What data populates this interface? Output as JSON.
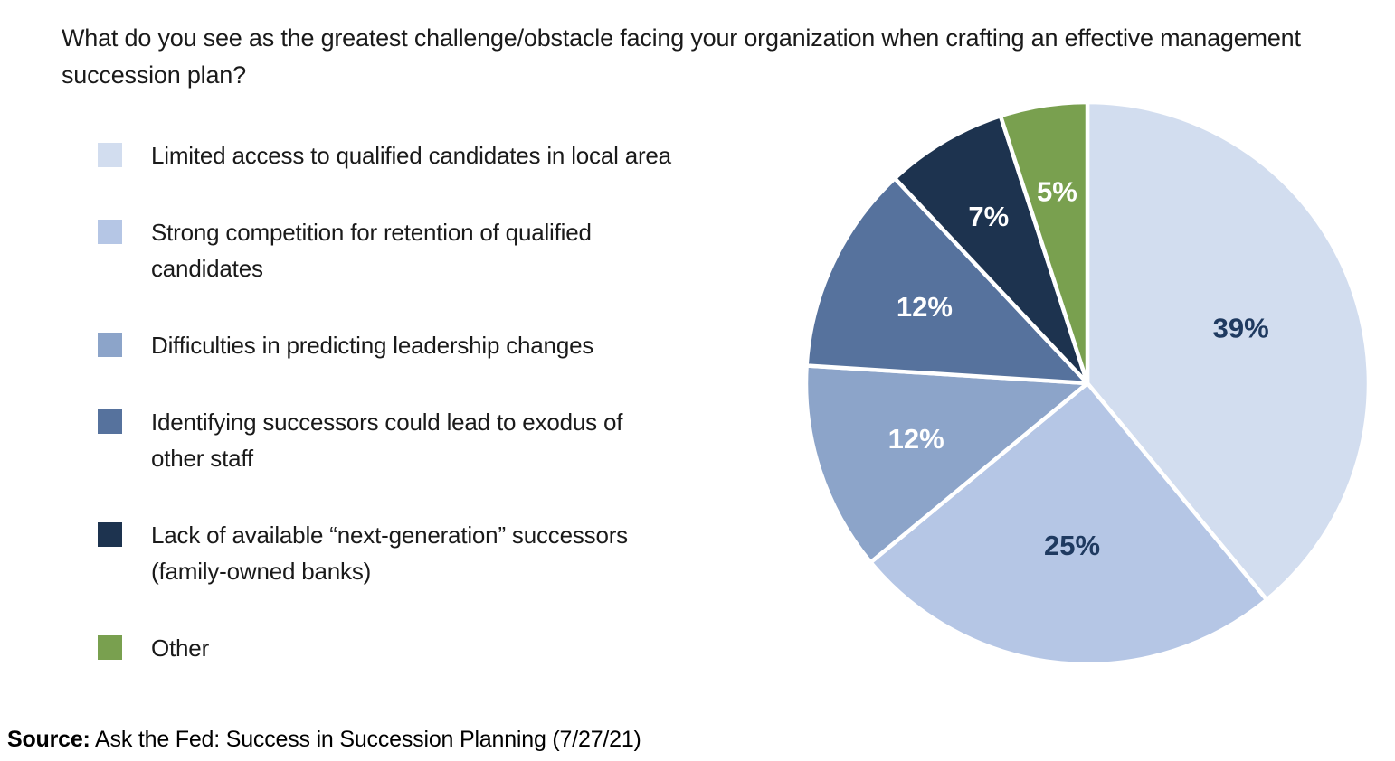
{
  "title": "What do you see as the greatest challenge/obstacle facing your organization when crafting an effective management succession plan?",
  "source": {
    "prefix": "Source:",
    "text": " Ask the Fed: Success in Succession Planning (7/27/21)"
  },
  "chart_data": {
    "type": "pie",
    "title": "What do you see as the greatest challenge/obstacle facing your organization when crafting an effective management succession plan?",
    "start_angle_deg": 0,
    "direction": "clockwise",
    "labels_position": "inside",
    "legend_position": "left",
    "separator_color": "#ffffff",
    "slices": [
      {
        "label": "Limited access to qualified candidates in local area",
        "legend_lines": [
          "Limited access to qualified candidates in local area"
        ],
        "value": 39,
        "display": "39%",
        "color": "#d2ddef",
        "label_color": "#1f3a60"
      },
      {
        "label": "Strong competition for retention of qualified candidates",
        "legend_lines": [
          "Strong competition for retention of qualified",
          "candidates"
        ],
        "value": 25,
        "display": "25%",
        "color": "#b5c6e5",
        "label_color": "#1f3a60"
      },
      {
        "label": "Difficulties in predicting leadership changes",
        "legend_lines": [
          "Difficulties in predicting leadership changes"
        ],
        "value": 12,
        "display": "12%",
        "color": "#8ca4c9",
        "label_color": "#ffffff"
      },
      {
        "label": "Identifying successors could lead to exodus of other staff",
        "legend_lines": [
          "Identifying successors could lead to exodus of",
          "other staff"
        ],
        "value": 12,
        "display": "12%",
        "color": "#56729d",
        "label_color": "#ffffff"
      },
      {
        "label": "Lack of available “next-generation” successors (family-owned banks)",
        "legend_lines": [
          "Lack of available “next-generation” successors",
          "(family-owned banks)"
        ],
        "value": 7,
        "display": "7%",
        "color": "#1d334f",
        "label_color": "#ffffff"
      },
      {
        "label": "Other",
        "legend_lines": [
          "Other"
        ],
        "value": 5,
        "display": "5%",
        "color": "#79a04f",
        "label_color": "#ffffff"
      }
    ]
  }
}
